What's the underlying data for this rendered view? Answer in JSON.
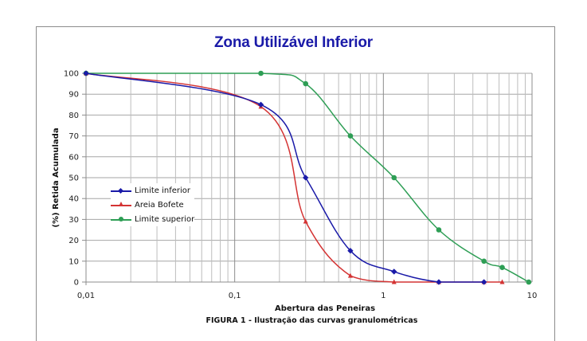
{
  "chart_data": {
    "type": "line",
    "title": "Zona Utilizável Inferior",
    "xlabel": "Abertura das Peneiras",
    "ylabel": "(%) Retida Acumulada",
    "xscale": "log",
    "xlim": [
      0.01,
      10
    ],
    "ylim": [
      0,
      100
    ],
    "x_ticks": [
      "0,01",
      "0,1",
      "1",
      "10"
    ],
    "y_ticks": [
      "0",
      "10",
      "20",
      "30",
      "40",
      "50",
      "60",
      "70",
      "80",
      "90",
      "100"
    ],
    "grid": true,
    "legend_position": "inside-left-middle",
    "series": [
      {
        "name": "Limite inferior",
        "color": "#1a1aa8",
        "marker": "diamond",
        "x": [
          0.01,
          0.15,
          0.3,
          0.6,
          1.18,
          2.36,
          4.75
        ],
        "values": [
          100,
          85,
          50,
          15,
          5,
          0,
          0
        ]
      },
      {
        "name": "Areia Bofete",
        "color": "#d43333",
        "marker": "triangle",
        "x": [
          0.01,
          0.15,
          0.3,
          0.6,
          1.18,
          2.36,
          4.75,
          6.3
        ],
        "values": [
          100,
          84,
          29,
          3,
          0,
          0,
          0,
          0
        ]
      },
      {
        "name": "Limite superior",
        "color": "#2e9e55",
        "marker": "circle",
        "x": [
          0.01,
          0.15,
          0.3,
          0.6,
          1.18,
          2.36,
          4.75,
          6.3,
          9.5
        ],
        "values": [
          100,
          100,
          95,
          70,
          50,
          25,
          10,
          7,
          0
        ]
      }
    ],
    "caption": "FIGURA  1 - Ilustração  das curvas granulométricas"
  },
  "legend": {
    "items": [
      {
        "label": "Limite inferior",
        "color": "#1a1aa8"
      },
      {
        "label": "Areia Bofete",
        "color": "#d43333"
      },
      {
        "label": "Limite superior",
        "color": "#2e9e55"
      }
    ]
  }
}
